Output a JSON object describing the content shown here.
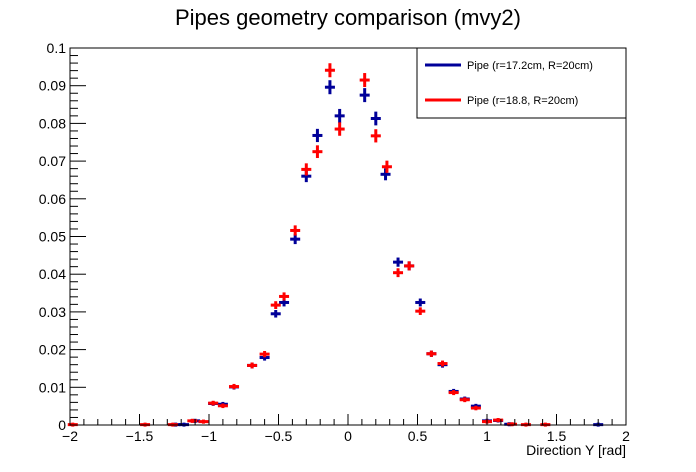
{
  "chart_data": {
    "type": "scatter",
    "title": "Pipes geometry comparison (mvy2)",
    "xlabel": "Direction Y [rad]",
    "ylabel": "",
    "xlim": [
      -2,
      2
    ],
    "ylim": [
      0,
      0.1
    ],
    "x_ticks": [
      -2,
      -1.5,
      -1,
      -0.5,
      0,
      0.5,
      1,
      1.5,
      2
    ],
    "x_tick_labels": [
      "−2",
      "−1.5",
      "−1",
      "−0.5",
      "0",
      "0.5",
      "1",
      "1.5",
      "2"
    ],
    "y_ticks": [
      0,
      0.01,
      0.02,
      0.03,
      0.04,
      0.05,
      0.06,
      0.07,
      0.08,
      0.09,
      0.1
    ],
    "y_tick_labels": [
      "0",
      "0.01",
      "0.02",
      "0.03",
      "0.04",
      "0.05",
      "0.06",
      "0.07",
      "0.08",
      "0.09",
      "0.1"
    ],
    "bin_half_width": 0.036,
    "legend_position": "top-right",
    "grid": false,
    "series": [
      {
        "name": "Pipe (r=17.2cm, R=20cm)",
        "color": "#000099",
        "x": [
          -1.24,
          -1.18,
          -1.1,
          -0.97,
          -0.9,
          -0.82,
          -0.69,
          -0.6,
          -0.52,
          -0.46,
          -0.38,
          -0.3,
          -0.22,
          -0.13,
          -0.06,
          0.12,
          0.2,
          0.27,
          0.36,
          0.44,
          0.52,
          0.6,
          0.68,
          0.76,
          0.84,
          0.92,
          1.0,
          1.08,
          1.16,
          1.8
        ],
        "values": [
          0.0001,
          0.0001,
          0.0011,
          0.0057,
          0.0055,
          0.0101,
          0.0158,
          0.0179,
          0.0295,
          0.0325,
          0.0493,
          0.066,
          0.0768,
          0.0896,
          0.082,
          0.0875,
          0.0813,
          0.0665,
          0.0432,
          0.0422,
          0.0325,
          0.0189,
          0.016,
          0.0089,
          0.0069,
          0.005,
          0.0011,
          0.0012,
          0.0002,
          0.0001
        ]
      },
      {
        "name": "Pipe (r=18.8, R=20cm)",
        "color": "#ff0000",
        "x": [
          -1.98,
          -1.46,
          -1.26,
          -1.12,
          -1.04,
          -0.97,
          -0.9,
          -0.82,
          -0.69,
          -0.6,
          -0.52,
          -0.46,
          -0.38,
          -0.3,
          -0.22,
          -0.13,
          -0.06,
          0.12,
          0.2,
          0.28,
          0.36,
          0.44,
          0.52,
          0.6,
          0.68,
          0.76,
          0.84,
          0.92,
          1.0,
          1.08,
          1.18,
          1.28,
          1.42
        ],
        "values": [
          0.0001,
          0.0001,
          0.0001,
          0.0011,
          0.0009,
          0.0058,
          0.0051,
          0.0102,
          0.0158,
          0.0188,
          0.0318,
          0.0341,
          0.0516,
          0.0678,
          0.0725,
          0.0941,
          0.0785,
          0.0915,
          0.0767,
          0.0685,
          0.0404,
          0.0422,
          0.0302,
          0.0189,
          0.0163,
          0.0086,
          0.0067,
          0.0045,
          0.0009,
          0.0013,
          0.0002,
          0.0001,
          0.0001
        ]
      }
    ]
  }
}
